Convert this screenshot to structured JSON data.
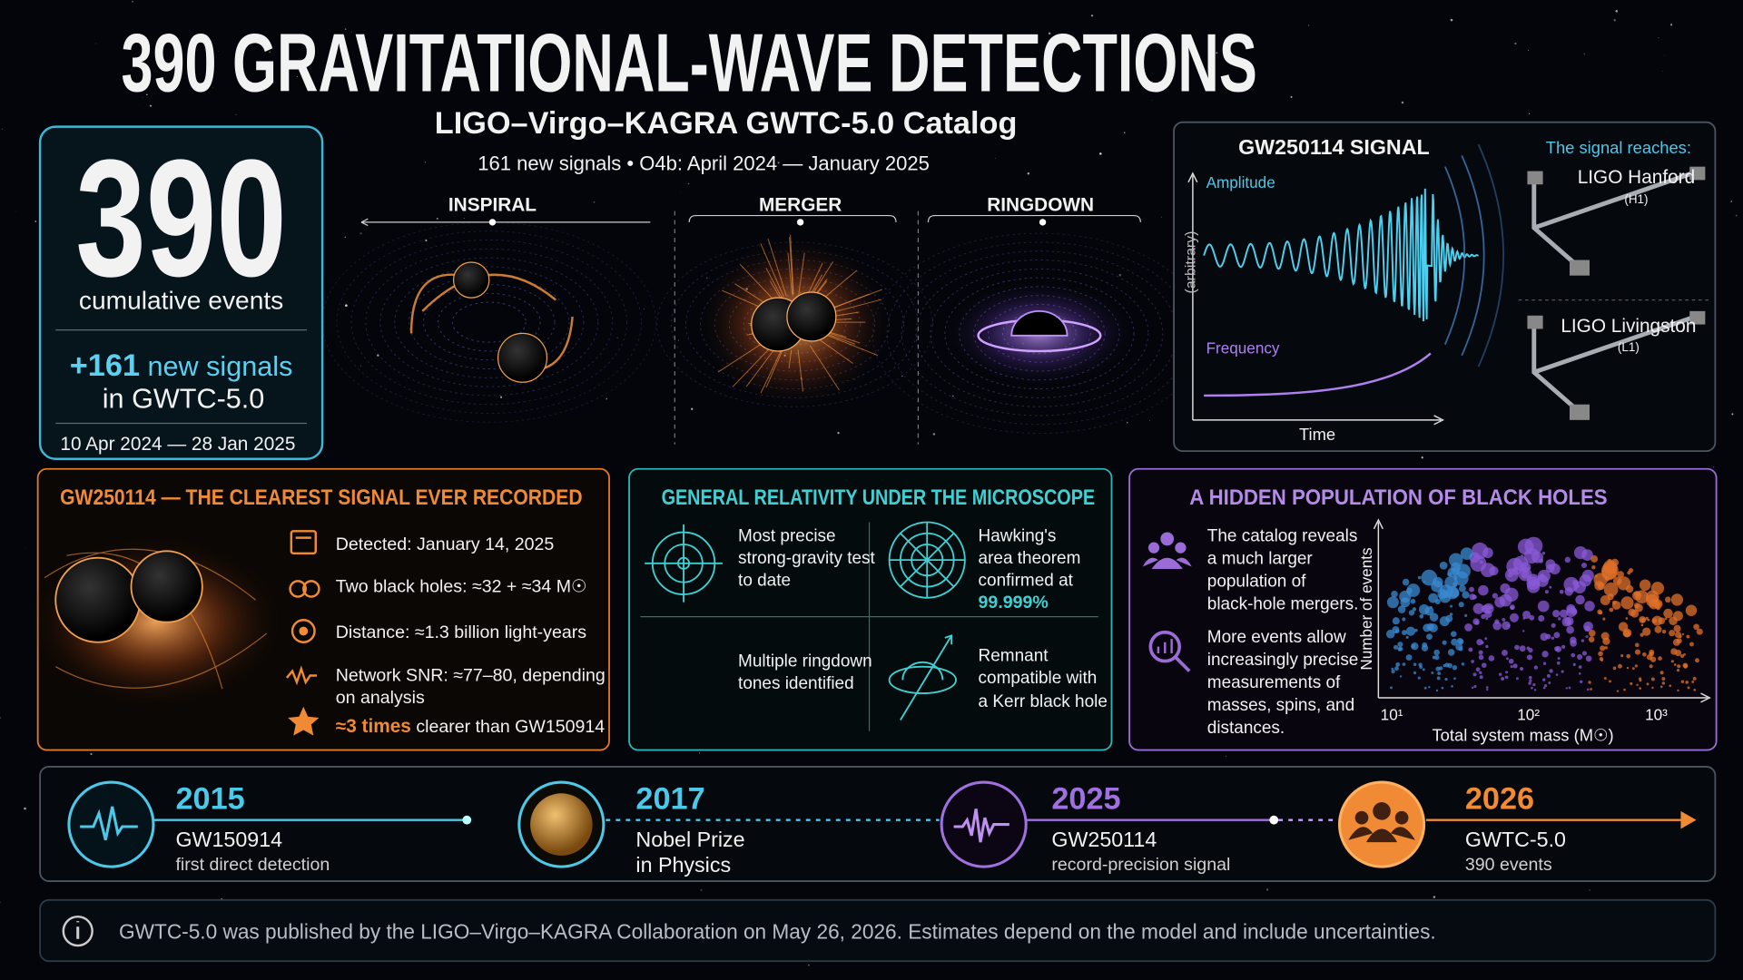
{
  "header": {
    "title": "390 GRAVITATIONAL-WAVE DETECTIONS",
    "subtitle": "LIGO–Virgo–KAGRA GWTC-5.0 Catalog",
    "tagline": "161 new signals • O4b: April 2024 — January 2025"
  },
  "summary": {
    "count": "390",
    "count_label": "cumulative events",
    "new_prefix": "+161",
    "new_suffix": "new signals",
    "new_line2": "in GWTC-5.0",
    "dates": "10 Apr 2024 — 28 Jan 2025"
  },
  "phases": [
    "INSPIRAL",
    "MERGER",
    "RINGDOWN"
  ],
  "signal": {
    "title": "GW250114 SIGNAL",
    "amplitude": "Amplitude",
    "arbitrary": "(arbitrary)",
    "frequency": "Frequency",
    "time": "Time",
    "reaches": "The signal reaches:",
    "detectors": [
      {
        "name": "LIGO Hanford",
        "code": "(H1)"
      },
      {
        "name": "LIGO Livingston",
        "code": "(L1)"
      }
    ]
  },
  "clearest": {
    "title": "GW250114 — THE CLEAREST SIGNAL EVER RECORDED",
    "items": [
      [
        "Detected: January 14, 2025"
      ],
      [
        "Two black holes: ≈32 + ≈34 M☉"
      ],
      [
        "Distance: ≈1.3 billion light-years"
      ],
      [
        "Network SNR: ≈77–80, depending",
        "on analysis"
      ]
    ],
    "last_highlight": "≈3 times",
    "last_rest": "clearer than GW150914"
  },
  "relativity": {
    "title": "GENERAL RELATIVITY UNDER THE MICROSCOPE",
    "cells": [
      [
        "Most precise",
        "strong-gravity test",
        "to date"
      ],
      [
        "Hawking's",
        "area theorem",
        "confirmed at"
      ],
      [
        "Multiple ringdown",
        "tones identified"
      ],
      [
        "Remnant",
        "compatible with",
        "a Kerr black hole"
      ]
    ],
    "highlight": "99.999%"
  },
  "population": {
    "title": "A HIDDEN POPULATION OF BLACK HOLES",
    "texts": [
      [
        "The catalog reveals",
        "a much larger",
        "population of",
        "black-hole mergers."
      ],
      [
        "More events allow",
        "increasingly precise",
        "measurements of",
        "masses, spins, and",
        "distances."
      ]
    ],
    "ylabel": "Number of events",
    "xlabel": "Total system mass (M☉)",
    "xticks": [
      "10¹",
      "10²",
      "10³"
    ]
  },
  "timeline": [
    {
      "year": "2015",
      "label": [
        "GW150914"
      ],
      "sub": "first direct detection"
    },
    {
      "year": "2017",
      "label": [
        "Nobel Prize",
        "in Physics"
      ],
      "sub": null
    },
    {
      "year": "2025",
      "label": [
        "GW250114"
      ],
      "sub": "record-precision signal"
    },
    {
      "year": "2026",
      "label": [
        "GWTC-5.0"
      ],
      "sub": "390 events"
    }
  ],
  "footer": "GWTC-5.0 was published by the LIGO–Virgo–KAGRA Collaboration on May 26, 2026. Estimates depend on the model and include uncertainties."
}
